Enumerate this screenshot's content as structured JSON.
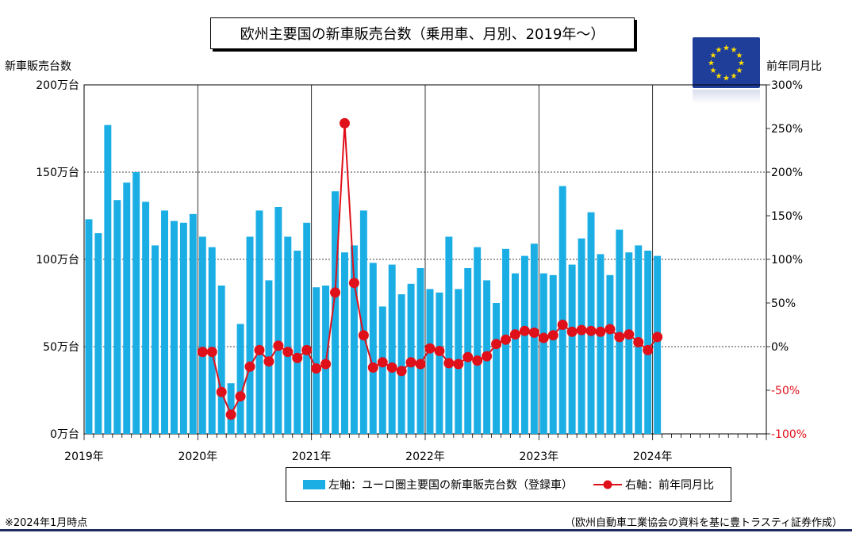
{
  "title": "欧州主要国の新車販売台数（乗用車、月別、2019年〜）",
  "left_axis_title": "新車販売台数",
  "right_axis_title": "前年同月比",
  "footnote_left": "※2024年1月時点",
  "footnote_right": "（欧州自動車工業協会の資料を基に豊トラスティ証券作成）",
  "flag_icon": "eu-flag-icon",
  "colors": {
    "bar": "#1aaee5",
    "line": "#e0101a",
    "negative_tick": "#e0101a"
  },
  "legend": {
    "bar_label": "左軸：ユーロ圏主要国の新車販売台数（登録車）",
    "line_label": "右軸：前年同月比"
  },
  "chart_data": {
    "type": "bar",
    "x_tick_labels": [
      "2019年",
      "2020年",
      "2021年",
      "2022年",
      "2023年",
      "2024年"
    ],
    "left_axis": {
      "ylim": [
        0,
        200
      ],
      "tick_labels": [
        "0万台",
        "50万台",
        "100万台",
        "150万台",
        "200万台"
      ]
    },
    "right_axis": {
      "ylim": [
        -100,
        300
      ],
      "tick_labels": [
        "-100%",
        "-50%",
        "0%",
        "50%",
        "100%",
        "150%",
        "200%",
        "250%",
        "300%"
      ]
    },
    "grid": "dotted horizontal at 50万台 intervals; solid vertical at year boundaries",
    "x_range_months": 72,
    "series": [
      {
        "name": "左軸：ユーロ圏主要国の新車販売台数（登録車）",
        "type": "bar",
        "axis": "left",
        "unit": "万台",
        "start": "2019-01",
        "values": [
          123,
          115,
          177,
          134,
          144,
          150,
          133,
          108,
          128,
          122,
          121,
          126,
          113,
          107,
          85,
          29,
          63,
          113,
          128,
          88,
          130,
          113,
          105,
          121,
          84,
          85,
          139,
          104,
          108,
          128,
          98,
          73,
          97,
          80,
          86,
          95,
          83,
          81,
          113,
          83,
          95,
          107,
          88,
          75,
          106,
          92,
          102,
          109,
          92,
          91,
          142,
          97,
          112,
          127,
          103,
          91,
          117,
          104,
          108,
          105,
          102
        ]
      },
      {
        "name": "右軸：前年同月比",
        "type": "line",
        "axis": "right",
        "unit": "%",
        "start": "2020-01",
        "values": [
          -6,
          -6,
          -52,
          -78,
          -57,
          -23,
          -4,
          -17,
          1,
          -6,
          -13,
          -4,
          -25,
          -20,
          62,
          256,
          73,
          13,
          -24,
          -18,
          -24,
          -28,
          -18,
          -20,
          -2,
          -5,
          -19,
          -20,
          -12,
          -16,
          -11,
          3,
          8,
          14,
          18,
          16,
          10,
          13,
          25,
          17,
          19,
          18,
          17,
          20,
          11,
          14,
          5,
          -4,
          11
        ]
      }
    ]
  }
}
